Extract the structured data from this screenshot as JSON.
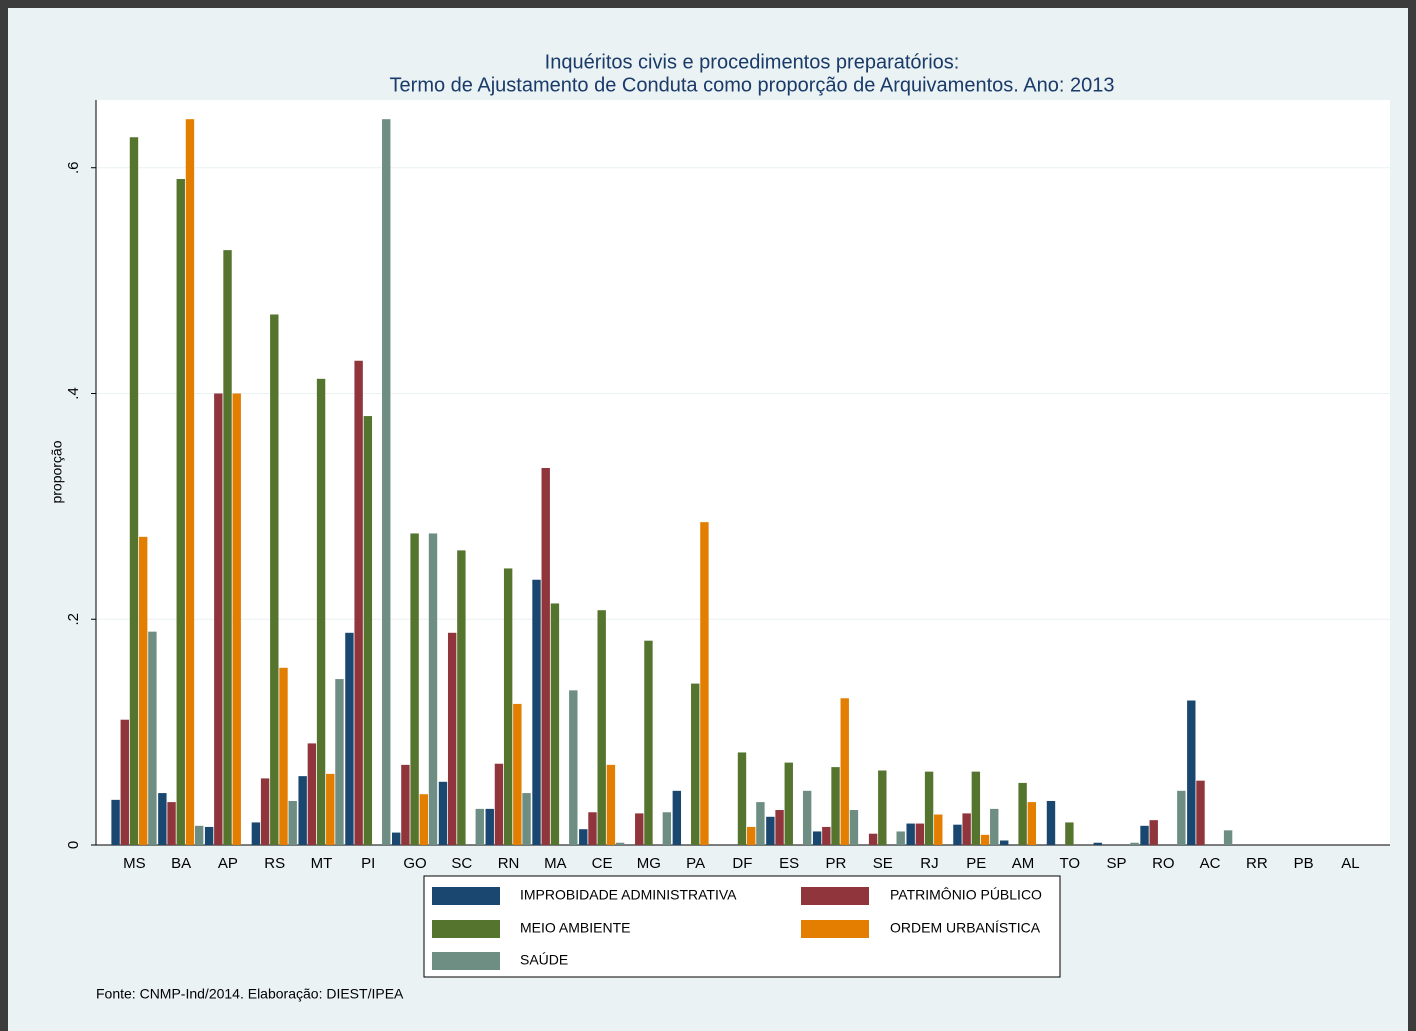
{
  "chart_data": {
    "type": "bar",
    "title": [
      "Inquéritos civis e procedimentos preparatórios:",
      "Termo de Ajustamento de Conduta como proporção de Arquivamentos. Ano: 2013"
    ],
    "y_label": "proporção",
    "note": "Fonte: CNMP-Ind/2014.  Elaboração: DIEST/IPEA",
    "categories": [
      "MS",
      "BA",
      "AP",
      "RS",
      "MT",
      "PI",
      "GO",
      "SC",
      "RN",
      "MA",
      "CE",
      "MG",
      "PA",
      "DF",
      "ES",
      "PR",
      "SE",
      "RJ",
      "PE",
      "AM",
      "TO",
      "SP",
      "RO",
      "AC",
      "RR",
      "PB",
      "AL"
    ],
    "series": [
      {
        "name": "IMPROBIDADE ADMINISTRATIVA",
        "color": "#1a476f",
        "values": [
          0.04,
          0.046,
          0.016,
          0.02,
          0.061,
          0.188,
          0.011,
          0.056,
          0.032,
          0.235,
          0.014,
          0,
          0.048,
          0,
          0.025,
          0.012,
          0,
          0.019,
          0.018,
          0.004,
          0.039,
          0.002,
          0.017,
          0.128,
          0,
          0,
          0
        ]
      },
      {
        "name": "PATRIMÔNIO PÚBLICO",
        "color": "#90353b",
        "values": [
          0.111,
          0.038,
          0.4,
          0.059,
          0.09,
          0.429,
          0.071,
          0.188,
          0.072,
          0.334,
          0.029,
          0.028,
          0,
          0,
          0.031,
          0.016,
          0.01,
          0.019,
          0.028,
          0,
          0,
          0,
          0.022,
          0.057,
          0,
          0,
          0
        ]
      },
      {
        "name": "MEIO AMBIENTE",
        "color": "#55752f",
        "values": [
          0.627,
          0.59,
          0.527,
          0.47,
          0.413,
          0.38,
          0.276,
          0.261,
          0.245,
          0.214,
          0.208,
          0.181,
          0.143,
          0.082,
          0.073,
          0.069,
          0.066,
          0.065,
          0.065,
          0.055,
          0.02,
          0,
          0,
          0,
          0,
          0,
          0
        ]
      },
      {
        "name": "ORDEM URBANÍSTICA",
        "color": "#e37e00",
        "values": [
          0.273,
          0.643,
          0.4,
          0.157,
          0.063,
          0,
          0.045,
          0,
          0.125,
          0,
          0.071,
          0,
          0.286,
          0.016,
          0,
          0.13,
          0,
          0.027,
          0.009,
          0.038,
          0,
          0,
          0,
          0,
          0,
          0,
          0
        ]
      },
      {
        "name": "SAÚDE",
        "color": "#6e8e84",
        "values": [
          0.189,
          0.017,
          0,
          0.039,
          0.147,
          0.643,
          0.276,
          0.032,
          0.046,
          0.137,
          0.002,
          0.029,
          0,
          0.038,
          0.048,
          0.031,
          0.012,
          0,
          0.032,
          0,
          0,
          0.002,
          0.048,
          0.013,
          0,
          0,
          0
        ]
      }
    ],
    "ylim": [
      0,
      0.66
    ],
    "yticks": [
      0,
      {
        "value": 0.2,
        "label": ".2"
      },
      {
        "value": 0.4,
        "label": ".4"
      },
      {
        "value": 0.6,
        "label": ".6"
      }
    ],
    "grid": true
  }
}
